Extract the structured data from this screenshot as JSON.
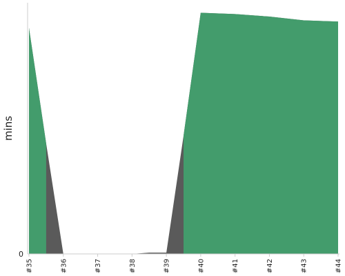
{
  "chart_data": {
    "type": "area",
    "categories": [
      "#35",
      "#36",
      "#37",
      "#38",
      "#39",
      "#40",
      "#41",
      "#42",
      "#43",
      "#44"
    ],
    "x": [
      35,
      35.5,
      36,
      36.5,
      37,
      37.5,
      38,
      38.5,
      39,
      39.5,
      40,
      41,
      42,
      43,
      44
    ],
    "series": [
      {
        "color": "#439c6c",
        "values": [
          0.9,
          0.44,
          0,
          0,
          0,
          0,
          0,
          0,
          0,
          0.47,
          0.96,
          0.955,
          0.945,
          0.93,
          0.925
        ]
      },
      {
        "color": "#5a5a5a",
        "values": [
          0.9,
          0.44,
          0,
          0,
          0,
          0,
          0,
          0.005,
          0.005,
          0.47,
          0.96,
          0.955,
          0.945,
          0.93,
          0.925
        ]
      }
    ],
    "green_band_end": 35.5,
    "green_band_start": 39.5,
    "ylabel": "mins",
    "yticks": [
      {
        "value": 0,
        "label": "0"
      }
    ],
    "ylim": [
      0,
      1
    ],
    "xlim": [
      35,
      44
    ],
    "grid": false,
    "axis_color": "#cccccc"
  }
}
